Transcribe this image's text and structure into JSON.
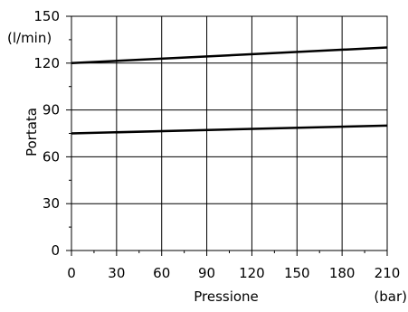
{
  "chart_data": {
    "type": "line",
    "xlabel": "Pressione",
    "ylabel": "Portata",
    "x_unit": "(bar)",
    "y_unit": "(l/min)",
    "xlim": [
      0,
      210
    ],
    "ylim": [
      0,
      150
    ],
    "x_ticks": [
      0,
      30,
      60,
      90,
      120,
      150,
      180,
      210
    ],
    "y_ticks": [
      0,
      30,
      60,
      90,
      120,
      150
    ],
    "grid": true,
    "series": [
      {
        "x": [
          0,
          210
        ],
        "y": [
          120,
          130
        ]
      },
      {
        "x": [
          0,
          210
        ],
        "y": [
          75,
          80
        ]
      }
    ],
    "colors": {
      "line": "#000000",
      "grid": "#000000"
    }
  }
}
